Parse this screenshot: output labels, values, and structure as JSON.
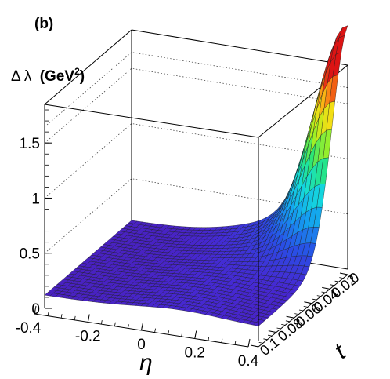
{
  "panel_label": "(b)",
  "chart_data": {
    "type": "surface3d",
    "zlabel_prefix": "Δ λ",
    "zlabel_unit": "(GeV",
    "zlabel_sup": "2",
    "zlabel_close": ")",
    "xlabel": "η",
    "ylabel": "t",
    "xlim": [
      -0.4,
      0.4
    ],
    "ylim": [
      0,
      0.1
    ],
    "zlim": [
      0,
      1.85
    ],
    "x_ticks": [
      -0.4,
      -0.2,
      0,
      0.2,
      0.4
    ],
    "x_tick_labels": [
      "-0.4",
      "-0.2",
      "0",
      "0.2",
      "0.4"
    ],
    "y_ticks": [
      0,
      0.02,
      0.04,
      0.06,
      0.08,
      0.1
    ],
    "y_tick_labels": [
      "0",
      "0.02",
      "0.04",
      "0.06",
      "0.08",
      "0.1"
    ],
    "z_ticks": [
      0,
      0.5,
      1,
      1.5
    ],
    "z_tick_labels": [
      "0",
      "0.5",
      "1",
      "1.5"
    ],
    "peak": {
      "x": 0.4,
      "y": 0,
      "z": 1.8
    },
    "grid": true
  }
}
